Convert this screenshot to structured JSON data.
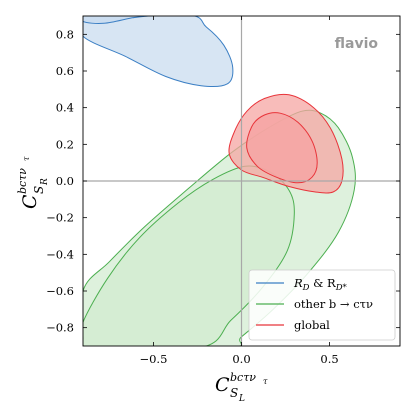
{
  "chart_data": {
    "type": "contour",
    "watermark": "flavio",
    "xlabel": "C",
    "xlabel_sup": "bcτν",
    "xlabel_sup_sub": "τ",
    "xlabel_sub": "S",
    "xlabel_sub_sub": "L",
    "ylabel": "C",
    "ylabel_sup": "bcτν",
    "ylabel_sup_sub": "τ",
    "ylabel_sub": "S",
    "ylabel_sub_sub": "R",
    "xlim": [
      -0.9,
      0.9
    ],
    "ylim": [
      -0.9,
      0.9
    ],
    "xticks": [
      -0.5,
      0.0,
      0.5
    ],
    "xtick_labels": [
      "−0.5",
      "0.0",
      "0.5"
    ],
    "yticks": [
      -0.8,
      -0.6,
      -0.4,
      -0.2,
      0.0,
      0.2,
      0.4,
      0.6,
      0.8
    ],
    "ytick_labels": [
      "−0.8",
      "−0.6",
      "−0.4",
      "−0.2",
      "0.0",
      "0.2",
      "0.4",
      "0.6",
      "0.8"
    ],
    "reference_lines": {
      "x": 0.0,
      "y": 0.0
    },
    "grid": false,
    "legend_position": "lower-right",
    "series": [
      {
        "name": "R_D & R_D*",
        "legend_text": "R",
        "legend_sub1": "D",
        "legend_mid": " & R",
        "legend_sub2": "D*",
        "color": "#3b7fc4",
        "fill": "#c9dcef",
        "contours": [
          [
            [
              -0.9,
              0.87
            ],
            [
              -0.78,
              0.86
            ],
            [
              -0.62,
              0.89
            ],
            [
              -0.48,
              0.91
            ],
            [
              -0.9,
              0.91
            ]
          ],
          [
            [
              -0.9,
              0.79
            ],
            [
              -0.66,
              0.68
            ],
            [
              -0.43,
              0.57
            ],
            [
              -0.23,
              0.52
            ],
            [
              -0.08,
              0.53
            ],
            [
              -0.05,
              0.62
            ],
            [
              -0.1,
              0.74
            ],
            [
              -0.2,
              0.84
            ],
            [
              -0.32,
              0.91
            ],
            [
              -0.9,
              0.91
            ]
          ]
        ]
      },
      {
        "name": "other b → cτν",
        "legend_text": "other b → cτν",
        "color": "#4caf50",
        "fill": "#d3ecd1",
        "contours": [
          [
            [
              -0.9,
              -0.86
            ],
            [
              -0.9,
              -0.77
            ],
            [
              -0.76,
              -0.53
            ],
            [
              -0.58,
              -0.31
            ],
            [
              -0.36,
              -0.12
            ],
            [
              -0.16,
              0.01
            ],
            [
              0.02,
              0.08
            ],
            [
              0.16,
              0.05
            ],
            [
              0.27,
              -0.05
            ],
            [
              0.3,
              -0.18
            ],
            [
              0.26,
              -0.38
            ],
            [
              0.12,
              -0.58
            ],
            [
              -0.06,
              -0.76
            ],
            [
              -0.24,
              -0.91
            ],
            [
              -0.9,
              -0.91
            ]
          ],
          [
            [
              -0.9,
              -0.6
            ],
            [
              -0.75,
              -0.44
            ],
            [
              -0.55,
              -0.25
            ],
            [
              -0.3,
              -0.04
            ],
            [
              -0.05,
              0.16
            ],
            [
              0.17,
              0.3
            ],
            [
              0.34,
              0.38
            ],
            [
              0.45,
              0.37
            ],
            [
              0.55,
              0.29
            ],
            [
              0.63,
              0.13
            ],
            [
              0.64,
              -0.05
            ],
            [
              0.55,
              -0.28
            ],
            [
              0.38,
              -0.5
            ],
            [
              0.18,
              -0.7
            ],
            [
              0.0,
              -0.85
            ],
            [
              -0.08,
              -0.91
            ],
            [
              -0.9,
              -0.91
            ]
          ]
        ]
      },
      {
        "name": "global",
        "legend_text": "global",
        "color": "#e8343a",
        "fill": "#f6a5a3",
        "contours": [
          [
            [
              0.03,
              0.18
            ],
            [
              0.06,
              0.3
            ],
            [
              0.13,
              0.36
            ],
            [
              0.22,
              0.37
            ],
            [
              0.32,
              0.32
            ],
            [
              0.4,
              0.22
            ],
            [
              0.43,
              0.1
            ],
            [
              0.4,
              0.02
            ],
            [
              0.32,
              -0.01
            ],
            [
              0.2,
              0.02
            ],
            [
              0.09,
              0.08
            ]
          ],
          [
            [
              -0.07,
              0.15
            ],
            [
              -0.04,
              0.27
            ],
            [
              0.03,
              0.38
            ],
            [
              0.13,
              0.45
            ],
            [
              0.27,
              0.47
            ],
            [
              0.41,
              0.4
            ],
            [
              0.51,
              0.28
            ],
            [
              0.57,
              0.12
            ],
            [
              0.57,
              0.0
            ],
            [
              0.52,
              -0.06
            ],
            [
              0.42,
              -0.06
            ],
            [
              0.27,
              -0.03
            ],
            [
              0.12,
              0.02
            ],
            [
              0.0,
              0.06
            ]
          ]
        ]
      }
    ]
  }
}
